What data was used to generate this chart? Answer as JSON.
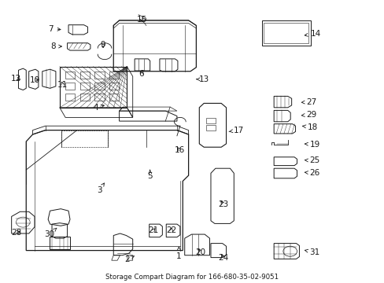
{
  "title": "Storage Compart Diagram for 166-680-35-02-9051",
  "bg_color": "#ffffff",
  "lc": "#1a1a1a",
  "fontsize": 7.5,
  "label_positions": {
    "1": [
      0.465,
      0.095,
      0.465,
      0.13,
      "left"
    ],
    "2": [
      0.33,
      0.082,
      0.355,
      0.1,
      "left"
    ],
    "3": [
      0.258,
      0.328,
      0.272,
      0.355,
      "left"
    ],
    "4": [
      0.248,
      0.62,
      0.278,
      0.63,
      "left"
    ],
    "5": [
      0.39,
      0.378,
      0.39,
      0.4,
      "left"
    ],
    "6": [
      0.368,
      0.74,
      0.375,
      0.76,
      "left"
    ],
    "7": [
      0.132,
      0.898,
      0.165,
      0.895,
      "left"
    ],
    "8": [
      0.138,
      0.836,
      0.168,
      0.836,
      "left"
    ],
    "9": [
      0.268,
      0.842,
      0.268,
      0.822,
      "left"
    ],
    "10": [
      0.09,
      0.718,
      0.108,
      0.718,
      "left"
    ],
    "11": [
      0.163,
      0.7,
      0.158,
      0.72,
      "left"
    ],
    "12": [
      0.042,
      0.722,
      0.06,
      0.718,
      "left"
    ],
    "13": [
      0.53,
      0.72,
      0.51,
      0.72,
      "left"
    ],
    "14": [
      0.82,
      0.88,
      0.79,
      0.875,
      "left"
    ],
    "15": [
      0.368,
      0.93,
      0.372,
      0.915,
      "left"
    ],
    "16": [
      0.468,
      0.47,
      0.455,
      0.485,
      "left"
    ],
    "17": [
      0.62,
      0.54,
      0.595,
      0.535,
      "left"
    ],
    "18": [
      0.812,
      0.55,
      0.785,
      0.555,
      "left"
    ],
    "19": [
      0.818,
      0.49,
      0.785,
      0.492,
      "left"
    ],
    "20": [
      0.522,
      0.108,
      0.51,
      0.128,
      "left"
    ],
    "21": [
      0.398,
      0.185,
      0.408,
      0.2,
      "left"
    ],
    "22": [
      0.445,
      0.185,
      0.448,
      0.205,
      "left"
    ],
    "23": [
      0.58,
      0.278,
      0.57,
      0.298,
      "left"
    ],
    "24": [
      0.58,
      0.09,
      0.572,
      0.11,
      "left"
    ],
    "25": [
      0.818,
      0.432,
      0.785,
      0.435,
      "left"
    ],
    "26": [
      0.818,
      0.388,
      0.785,
      0.392,
      "left"
    ],
    "27": [
      0.81,
      0.64,
      0.782,
      0.638,
      "left"
    ],
    "28": [
      0.042,
      0.178,
      0.06,
      0.185,
      "left"
    ],
    "29": [
      0.81,
      0.595,
      0.782,
      0.592,
      "left"
    ],
    "30": [
      0.128,
      0.172,
      0.148,
      0.195,
      "left"
    ],
    "31": [
      0.818,
      0.108,
      0.785,
      0.118,
      "left"
    ]
  }
}
